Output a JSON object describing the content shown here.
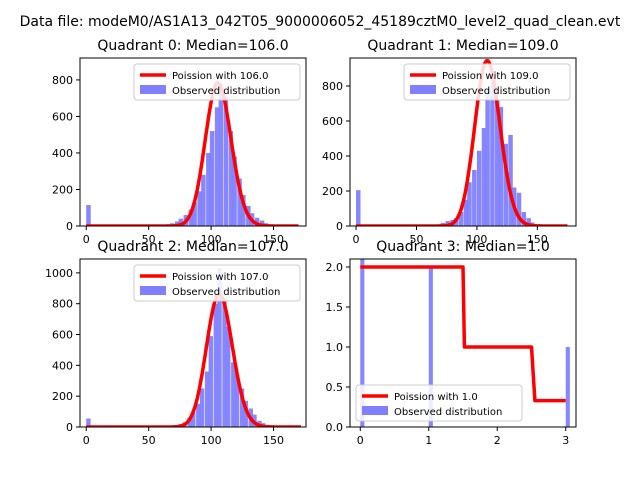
{
  "suptitle": "Data file: modeM0/AS1A13_042T05_9000006052_45189cztM0_level2_quad_clean.evt",
  "colors": {
    "curve": "#ff0000",
    "hist": "#7f7fff",
    "axis": "#000000",
    "legend_border": "#cccccc"
  },
  "chart_data": [
    {
      "type": "bar+line",
      "title": "Quadrant 0: Median=106.0",
      "xlim": [
        -5,
        176
      ],
      "ylim": [
        0,
        920
      ],
      "xticks": [
        0,
        50,
        100,
        150
      ],
      "yticks": [
        0,
        200,
        400,
        600,
        800
      ],
      "legend": {
        "position": "upper right",
        "line_label": "Poission with 106.0",
        "bar_label": "Observed distribution"
      },
      "bin_width": 3.6,
      "hist": [
        [
          0,
          115
        ],
        [
          64,
          10
        ],
        [
          67,
          15
        ],
        [
          71,
          25
        ],
        [
          74,
          40
        ],
        [
          78,
          60
        ],
        [
          82,
          90
        ],
        [
          85,
          130
        ],
        [
          89,
          190
        ],
        [
          92,
          280
        ],
        [
          96,
          400
        ],
        [
          99,
          520
        ],
        [
          103,
          650
        ],
        [
          106,
          780
        ],
        [
          110,
          710
        ],
        [
          114,
          520
        ],
        [
          117,
          380
        ],
        [
          121,
          260
        ],
        [
          124,
          170
        ],
        [
          128,
          110
        ],
        [
          131,
          70
        ],
        [
          135,
          45
        ],
        [
          139,
          30
        ],
        [
          142,
          15
        ],
        [
          146,
          8
        ]
      ],
      "curve": {
        "lambda": 106.0,
        "scale": 3.6,
        "range": [
          0,
          170
        ]
      }
    },
    {
      "type": "bar+line",
      "title": "Quadrant 1: Median=109.0",
      "xlim": [
        -5,
        182
      ],
      "ylim": [
        0,
        960
      ],
      "xticks": [
        0,
        50,
        100,
        150
      ],
      "yticks": [
        0,
        200,
        400,
        600,
        800
      ],
      "legend": {
        "position": "upper right",
        "line_label": "Poission with 109.0",
        "bar_label": "Observed distribution"
      },
      "bin_width": 3.7,
      "hist": [
        [
          0,
          205
        ],
        [
          67,
          10
        ],
        [
          70,
          18
        ],
        [
          74,
          28
        ],
        [
          78,
          35
        ],
        [
          81,
          45
        ],
        [
          85,
          80
        ],
        [
          89,
          150
        ],
        [
          92,
          250
        ],
        [
          96,
          320
        ],
        [
          100,
          430
        ],
        [
          104,
          560
        ],
        [
          107,
          780
        ],
        [
          111,
          820
        ],
        [
          115,
          720
        ],
        [
          118,
          680
        ],
        [
          122,
          470
        ],
        [
          126,
          520
        ],
        [
          129,
          220
        ],
        [
          133,
          190
        ],
        [
          137,
          80
        ],
        [
          141,
          45
        ],
        [
          144,
          20
        ],
        [
          148,
          10
        ]
      ],
      "curve": {
        "lambda": 109.0,
        "scale": 3.7,
        "range": [
          0,
          175
        ]
      }
    },
    {
      "type": "bar+line",
      "title": "Quadrant 2: Median=107.0",
      "xlim": [
        -5,
        176
      ],
      "ylim": [
        0,
        1090
      ],
      "xticks": [
        0,
        50,
        100,
        150
      ],
      "yticks": [
        0,
        200,
        400,
        600,
        800,
        1000
      ],
      "legend": {
        "position": "upper right",
        "line_label": "Poission with 107.0",
        "bar_label": "Observed distribution"
      },
      "bin_width": 3.5,
      "hist": [
        [
          0,
          55
        ],
        [
          70,
          10
        ],
        [
          74,
          20
        ],
        [
          77,
          30
        ],
        [
          81,
          60
        ],
        [
          84,
          100
        ],
        [
          88,
          150
        ],
        [
          91,
          250
        ],
        [
          95,
          360
        ],
        [
          98,
          590
        ],
        [
          102,
          800
        ],
        [
          105,
          1030
        ],
        [
          109,
          840
        ],
        [
          112,
          650
        ],
        [
          116,
          420
        ],
        [
          119,
          340
        ],
        [
          123,
          250
        ],
        [
          126,
          170
        ],
        [
          130,
          120
        ],
        [
          133,
          80
        ],
        [
          137,
          40
        ],
        [
          140,
          25
        ],
        [
          144,
          10
        ]
      ],
      "curve": {
        "lambda": 107.0,
        "scale": 3.5,
        "range": [
          0,
          172
        ]
      }
    },
    {
      "type": "bar+line",
      "title": "Quadrant 3: Median=1.0",
      "xlim": [
        -0.15,
        3.15
      ],
      "ylim": [
        0,
        2.1
      ],
      "xticks": [
        0,
        1,
        2,
        3
      ],
      "yticks": [
        0.0,
        0.5,
        1.0,
        1.5,
        2.0
      ],
      "legend": {
        "position": "lower left",
        "line_label": "Poission with 1.0",
        "bar_label": "Observed distribution"
      },
      "bin_width": 0.06,
      "hist": [
        [
          0,
          2.1
        ],
        [
          1,
          2.0
        ],
        [
          3,
          1.0
        ]
      ],
      "curve_points": [
        [
          0,
          2.0
        ],
        [
          1.5,
          2.0
        ],
        [
          1.52,
          1.0
        ],
        [
          2.5,
          1.0
        ],
        [
          2.55,
          0.33
        ],
        [
          3.0,
          0.33
        ]
      ]
    }
  ]
}
